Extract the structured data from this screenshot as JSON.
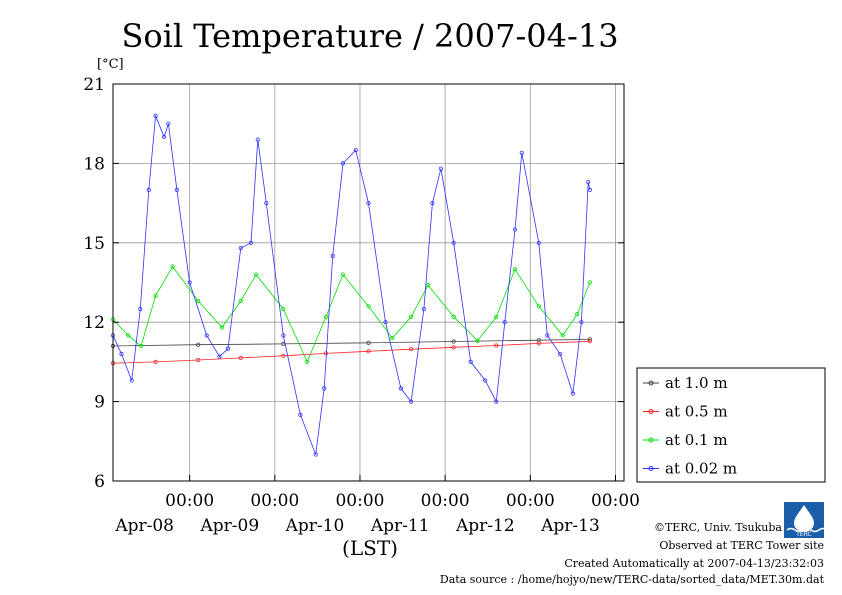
{
  "chart_data": {
    "type": "line",
    "title": "Soil Temperature / 2007-04-13",
    "ylabel": "[°C]",
    "xlabel": "(LST)",
    "ylim": [
      6,
      21
    ],
    "yticks": [
      6,
      9,
      12,
      15,
      18,
      21
    ],
    "grid": true,
    "legend_position": "right",
    "x_ticks": [
      {
        "time": "00:00",
        "date": "Apr-08",
        "day": 0.9
      },
      {
        "time": "00:00",
        "date": "Apr-09",
        "day": 1.9
      },
      {
        "time": "00:00",
        "date": "Apr-10",
        "day": 2.9
      },
      {
        "time": "00:00",
        "date": "Apr-11",
        "day": 3.9
      },
      {
        "time": "00:00",
        "date": "Apr-12",
        "day": 4.9
      },
      {
        "time": "00:00",
        "date": "Apr-13",
        "day": 5.9
      }
    ],
    "series": [
      {
        "name": "at 1.0 m",
        "color": "#404040",
        "x": [
          0,
          1,
          2,
          3,
          4,
          5,
          5.6
        ],
        "y": [
          11.1,
          11.15,
          11.18,
          11.22,
          11.27,
          11.32,
          11.35
        ]
      },
      {
        "name": "at 0.5 m",
        "color": "#ff2020",
        "x": [
          0,
          0.5,
          1,
          1.5,
          2,
          2.5,
          3,
          3.5,
          4,
          4.5,
          5,
          5.6
        ],
        "y": [
          10.45,
          10.5,
          10.57,
          10.65,
          10.73,
          10.82,
          10.9,
          10.98,
          11.05,
          11.12,
          11.2,
          11.28
        ]
      },
      {
        "name": "at 0.1 m",
        "color": "#00dd00",
        "x": [
          0,
          0.18,
          0.33,
          0.5,
          0.7,
          1.0,
          1.28,
          1.5,
          1.68,
          2.0,
          2.28,
          2.5,
          2.7,
          3.0,
          3.28,
          3.5,
          3.7,
          4.0,
          4.28,
          4.5,
          4.72,
          5.0,
          5.28,
          5.45,
          5.6
        ],
        "y": [
          12.1,
          11.5,
          11.1,
          13.0,
          14.1,
          12.8,
          11.8,
          12.8,
          13.8,
          12.5,
          10.5,
          12.2,
          13.8,
          12.6,
          11.4,
          12.2,
          13.4,
          12.2,
          11.3,
          12.2,
          14.0,
          12.6,
          11.5,
          12.3,
          13.5
        ]
      },
      {
        "name": "at 0.02 m",
        "color": "#3030ff",
        "x": [
          0,
          0.1,
          0.22,
          0.32,
          0.42,
          0.5,
          0.6,
          0.65,
          0.75,
          0.9,
          1.1,
          1.25,
          1.35,
          1.5,
          1.62,
          1.7,
          1.8,
          2.0,
          2.2,
          2.38,
          2.48,
          2.58,
          2.7,
          2.85,
          3.0,
          3.2,
          3.38,
          3.5,
          3.65,
          3.75,
          3.85,
          4.0,
          4.2,
          4.37,
          4.5,
          4.6,
          4.72,
          4.8,
          5.0,
          5.1,
          5.25,
          5.4,
          5.5,
          5.58,
          5.6
        ],
        "y": [
          11.5,
          10.8,
          9.8,
          12.5,
          17.0,
          19.8,
          19.0,
          19.5,
          17.0,
          13.5,
          11.5,
          10.7,
          11.0,
          14.8,
          15.0,
          18.9,
          16.5,
          11.5,
          8.5,
          7.0,
          9.5,
          14.5,
          18.0,
          18.5,
          16.5,
          12.0,
          9.5,
          9.0,
          12.5,
          16.5,
          17.8,
          15.0,
          10.5,
          9.8,
          9.0,
          12.0,
          15.5,
          18.4,
          15.0,
          11.5,
          10.8,
          9.3,
          12.0,
          17.3,
          17.0
        ]
      }
    ]
  },
  "footer": {
    "copyright": "©TERC, Univ. Tsukuba",
    "observed": "Observed at TERC Tower site",
    "created": "Created Automatically at 2007-04-13/23:32:03",
    "source": "Data source : /home/hojyo/new/TERC-data/sorted_data/MET.30m.dat",
    "logo_text": "TERC"
  }
}
